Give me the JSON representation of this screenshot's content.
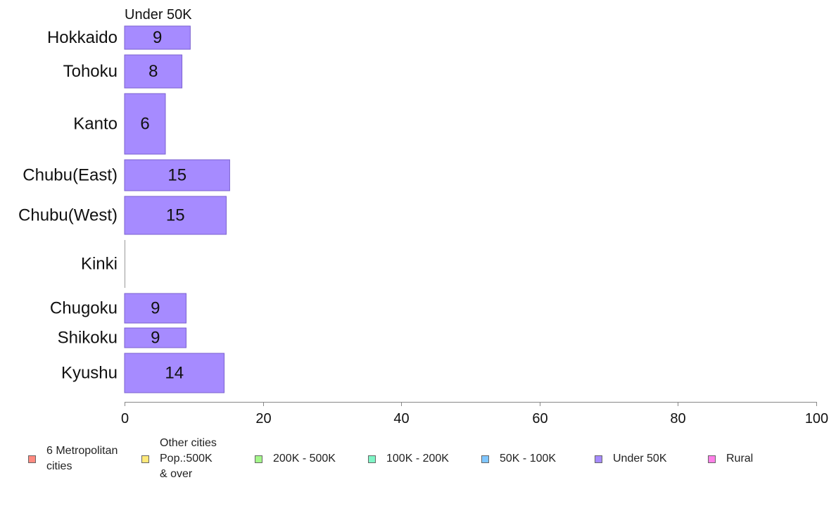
{
  "chart_data": {
    "type": "bar",
    "orientation": "horizontal",
    "title": "Under 50K",
    "categories": [
      "Hokkaido",
      "Tohoku",
      "Kanto",
      "Chubu(East)",
      "Chubu(West)",
      "Kinki",
      "Chugoku",
      "Shikoku",
      "Kyushu"
    ],
    "values": [
      9.5,
      8.3,
      5.9,
      15.2,
      14.7,
      0,
      8.9,
      8.9,
      14.4
    ],
    "value_labels": [
      "9",
      "8",
      "6",
      "15",
      "15",
      "",
      "9",
      "9",
      "14"
    ],
    "xlim": [
      0,
      100
    ],
    "xticks": [
      0,
      20,
      40,
      60,
      80,
      100
    ],
    "bar_color": "#A68BFF",
    "grid": false,
    "legend_placement": "bottom",
    "legend": [
      {
        "label": "6 Metropolitan\n cities",
        "color": "#FF8A80"
      },
      {
        "label": "Other cities\nPop.:500K\n & over",
        "color": "#FFE97A"
      },
      {
        "label": "200K - 500K",
        "color": "#A4F78A"
      },
      {
        "label": "100K - 200K",
        "color": "#7FF5C6"
      },
      {
        "label": "50K - 100K",
        "color": "#7FC6FF"
      },
      {
        "label": "Under 50K",
        "color": "#A68BFF"
      },
      {
        "label": "Rural",
        "color": "#FF80E8"
      }
    ]
  }
}
